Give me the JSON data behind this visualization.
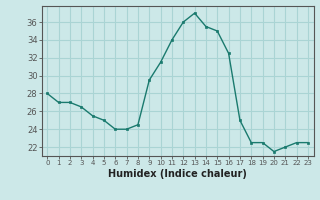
{
  "x": [
    0,
    1,
    2,
    3,
    4,
    5,
    6,
    7,
    8,
    9,
    10,
    11,
    12,
    13,
    14,
    15,
    16,
    17,
    18,
    19,
    20,
    21,
    22,
    23
  ],
  "y": [
    28,
    27,
    27,
    26.5,
    25.5,
    25,
    24,
    24,
    24.5,
    29.5,
    31.5,
    34,
    36,
    37,
    35.5,
    35,
    32.5,
    25,
    22.5,
    22.5,
    21.5,
    22,
    22.5,
    22.5
  ],
  "xlabel": "Humidex (Indice chaleur)",
  "ylabel_ticks": [
    22,
    24,
    26,
    28,
    30,
    32,
    34,
    36
  ],
  "ylim": [
    21.0,
    37.8
  ],
  "xlim": [
    -0.5,
    23.5
  ],
  "line_color": "#1a7a6e",
  "marker_color": "#1a7a6e",
  "bg_color": "#cce8e8",
  "grid_color": "#aad4d4",
  "axis_color": "#555555",
  "xlabel_fontsize": 7,
  "ytick_fontsize": 6,
  "xtick_fontsize": 5
}
